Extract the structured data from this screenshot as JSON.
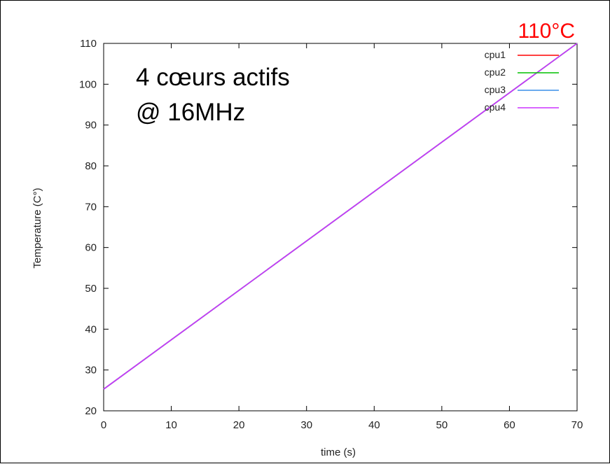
{
  "chart_data": {
    "type": "line",
    "xlabel": "time (s)",
    "ylabel": "Temperature (C°)",
    "xlim": [
      0,
      70
    ],
    "ylim": [
      20,
      110
    ],
    "xticks": [
      0,
      10,
      20,
      30,
      40,
      50,
      60,
      70
    ],
    "yticks": [
      20,
      30,
      40,
      50,
      60,
      70,
      80,
      90,
      100,
      110
    ],
    "grid": false,
    "legend_position": "top-right",
    "series": [
      {
        "name": "cpu1",
        "color": "#ff0000",
        "x": [
          0,
          70
        ],
        "y": [
          25.3,
          110
        ]
      },
      {
        "name": "cpu2",
        "color": "#00c000",
        "x": [
          0,
          70
        ],
        "y": [
          25.3,
          110
        ]
      },
      {
        "name": "cpu3",
        "color": "#3a8fe8",
        "x": [
          0,
          70
        ],
        "y": [
          25.3,
          110
        ]
      },
      {
        "name": "cpu4",
        "color": "#cc33ff",
        "x": [
          0,
          70
        ],
        "y": [
          25.3,
          110
        ]
      }
    ],
    "annotations": {
      "line1": "4 cœurs actifs",
      "line2": "@ 16MHz",
      "peak": "110°C",
      "peak_color": "#ff0000"
    }
  }
}
